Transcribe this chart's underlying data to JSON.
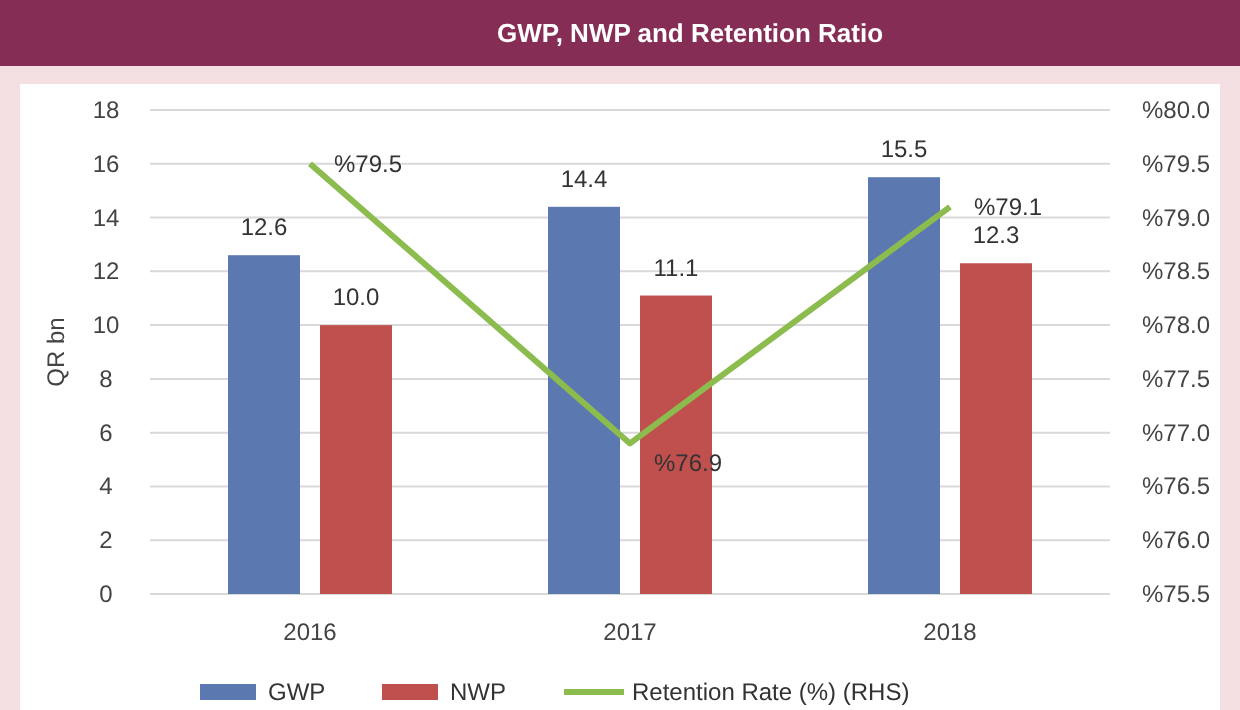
{
  "chart_data": {
    "type": "bar",
    "title": "GWP, NWP and Retention Ratio",
    "ylabel": "QR bn",
    "categories": [
      "2016",
      "2017",
      "2018"
    ],
    "series": [
      {
        "name": "GWP",
        "color": "#5b78b0",
        "values": [
          12.6,
          14.4,
          15.5
        ],
        "value_labels": [
          "12.6",
          "14.4",
          "15.5"
        ]
      },
      {
        "name": "NWP",
        "color": "#c0504d",
        "values": [
          10.0,
          11.1,
          12.3
        ],
        "value_labels": [
          "10.0",
          "11.1",
          "12.3"
        ]
      },
      {
        "name": "Retention Rate (%) (RHS)",
        "type": "line",
        "axis": "y2",
        "color": "#8cbb4e",
        "values": [
          79.5,
          76.9,
          79.1
        ],
        "value_labels": [
          "%79.5",
          "%76.9",
          "%79.1"
        ]
      }
    ],
    "ylim": [
      0,
      18
    ],
    "yticks": [
      0,
      2,
      4,
      6,
      8,
      10,
      12,
      14,
      16,
      18
    ],
    "y2lim": [
      75.5,
      80
    ],
    "y2ticks": [
      {
        "value": 75.5,
        "label": "%75.5"
      },
      {
        "value": 76,
        "label": "%76.0"
      },
      {
        "value": 76.5,
        "label": "%76.5"
      },
      {
        "value": 77,
        "label": "%77.0"
      },
      {
        "value": 77.5,
        "label": "%77.5"
      },
      {
        "value": 78,
        "label": "%78.0"
      },
      {
        "value": 78.5,
        "label": "%78.5"
      },
      {
        "value": 79,
        "label": "%79.0"
      },
      {
        "value": 79.5,
        "label": "%79.5"
      },
      {
        "value": 80,
        "label": "%80.0"
      }
    ],
    "grid": "y",
    "legend": "bottom"
  }
}
